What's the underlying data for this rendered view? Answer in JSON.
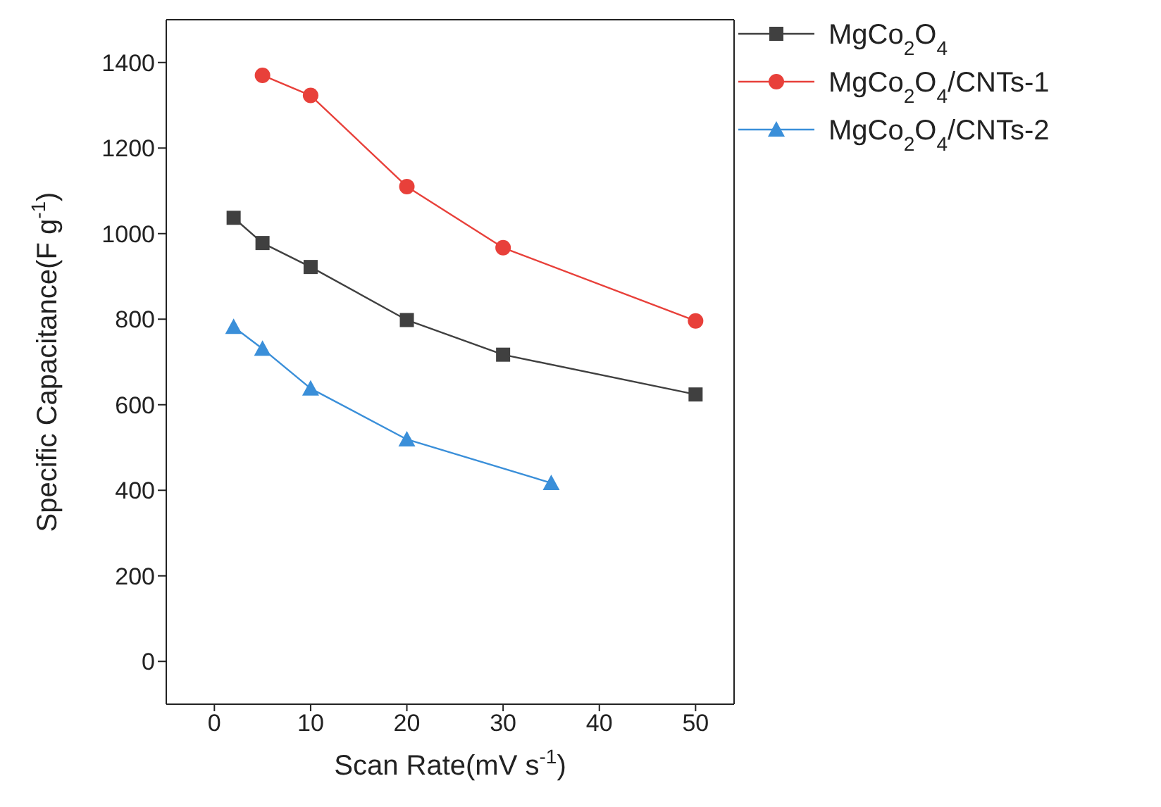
{
  "chart_data": {
    "type": "line",
    "xlabel": "Scan Rate(mV s$^{-1}$)",
    "ylabel": "Specific Capacitance(F g$^{-1}$)",
    "xlim": [
      -5,
      54
    ],
    "xticks": [
      0,
      10,
      20,
      30,
      40,
      50
    ],
    "ylim": [
      -100,
      1500
    ],
    "yticks": [
      0,
      200,
      400,
      600,
      800,
      1000,
      1200,
      1400
    ],
    "grid": false,
    "legend": "top right",
    "line_style": "solid",
    "series": [
      {
        "name": "MgCo$_{2}$O$_{4}$",
        "color": "#404040",
        "marker": "square",
        "x": [
          2,
          5,
          10,
          20,
          30,
          50
        ],
        "values": [
          1037,
          978,
          922,
          798,
          717,
          624
        ]
      },
      {
        "name": "MgCo$_{2}$O$_{4}$/CNTs-1",
        "color": "#e8403a",
        "marker": "circle",
        "x": [
          5,
          10,
          20,
          30,
          50
        ],
        "values": [
          1370,
          1323,
          1110,
          967,
          796
        ]
      },
      {
        "name": "MgCo$_{2}$O$_{4}$/CNTs-2",
        "color": "#3a8fd9",
        "marker": "triangle",
        "x": [
          2,
          5,
          10,
          20,
          35
        ],
        "values": [
          782,
          731,
          638,
          519,
          417
        ]
      }
    ]
  }
}
